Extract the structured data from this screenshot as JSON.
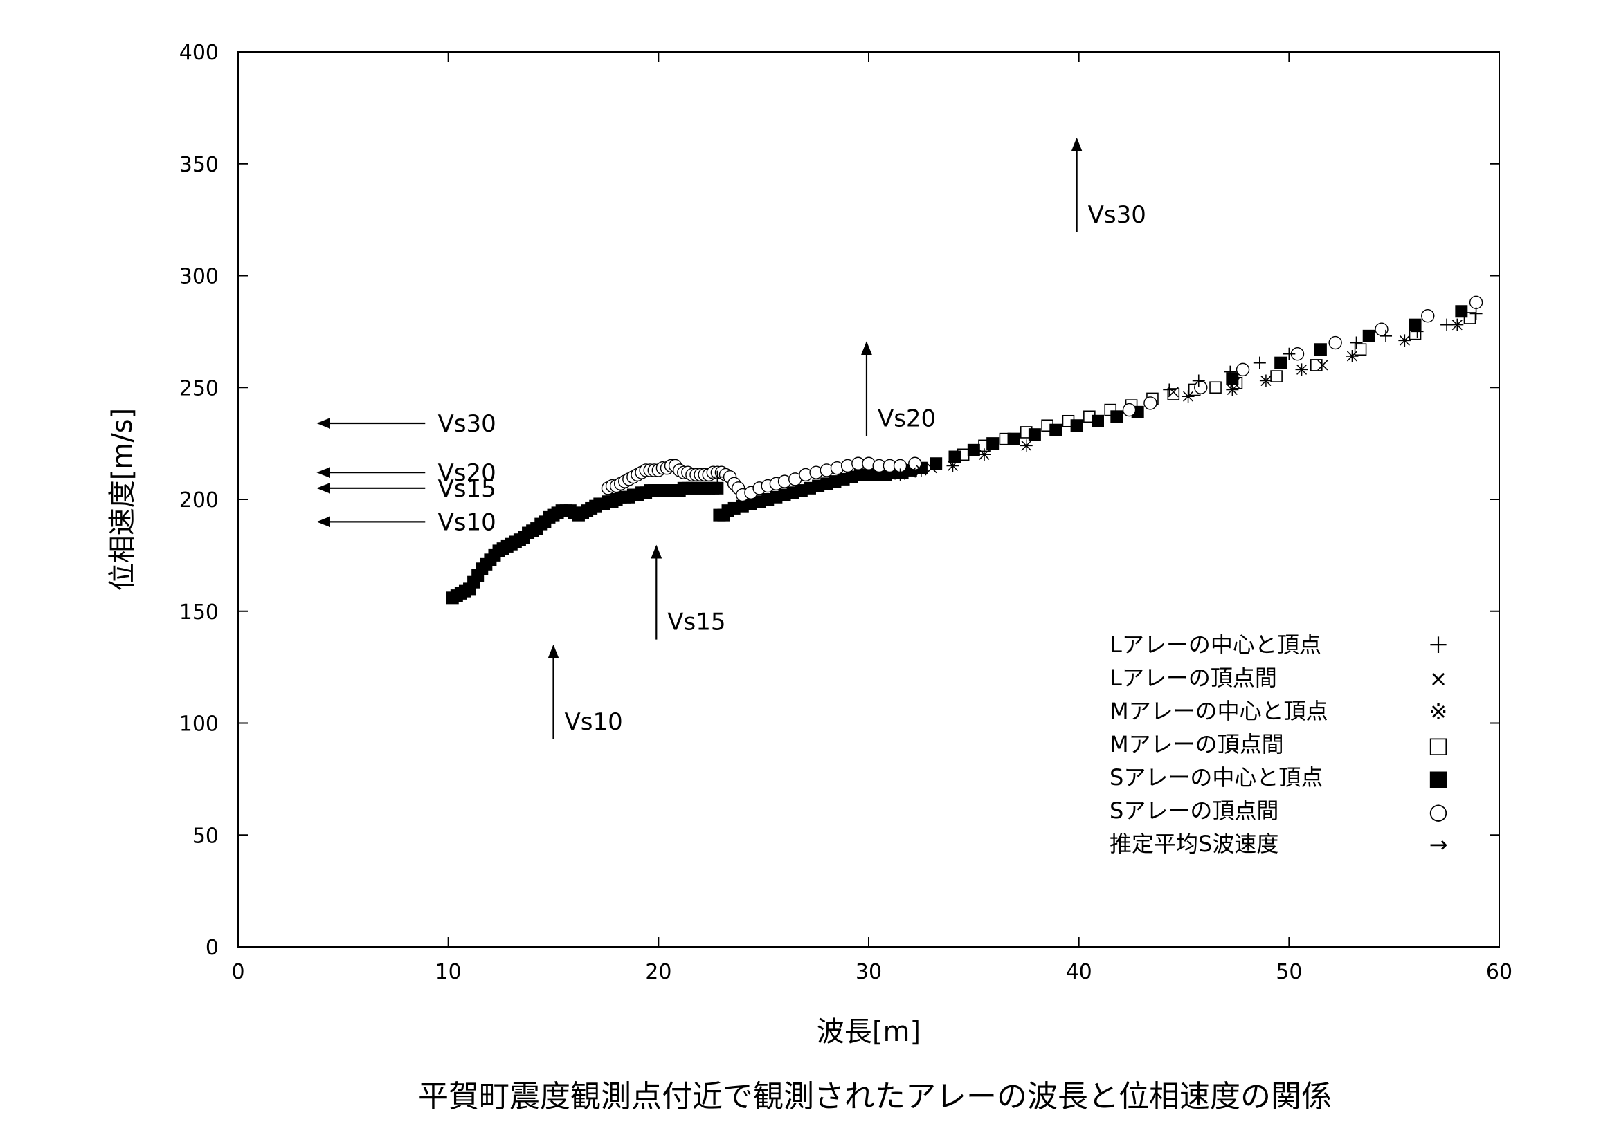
{
  "chart_data": {
    "type": "scatter",
    "title": "",
    "xlabel": "波長[m]",
    "ylabel": "位相速度[m/s]",
    "xlim": [
      0,
      60
    ],
    "ylim": [
      0,
      400
    ],
    "xticks": [
      0,
      10,
      20,
      30,
      40,
      50,
      60
    ],
    "yticks": [
      0,
      50,
      100,
      150,
      200,
      250,
      300,
      350,
      400
    ],
    "grid": false,
    "legend_position": "bottom-right",
    "series": [
      {
        "name": "Lアレーの中心と頂点",
        "marker": "plus",
        "x": [
          22.8,
          44.3,
          45.7,
          47.2,
          48.6,
          50.0,
          53.2,
          54.6,
          56.1,
          57.5,
          58.9
        ],
        "y": [
          210,
          249,
          253,
          257,
          261,
          265,
          270,
          273,
          275,
          278,
          283
        ]
      },
      {
        "name": "Lアレーの頂点間",
        "marker": "x",
        "x": [
          31.0,
          32.0,
          33.0,
          44.5,
          47.4,
          51.6
        ],
        "y": [
          211,
          212,
          214,
          248,
          252,
          260
        ]
      },
      {
        "name": "Mアレーの中心と頂点",
        "marker": "asterisk",
        "x": [
          31.5,
          32.5,
          34.0,
          35.5,
          37.5,
          45.2,
          47.3,
          48.9,
          50.6,
          53.0,
          55.5,
          58.0
        ],
        "y": [
          211,
          213,
          215,
          220,
          224,
          246,
          249,
          253,
          258,
          264,
          271,
          278
        ]
      },
      {
        "name": "Mアレーの頂点間",
        "marker": "square",
        "x": [
          34.5,
          35.5,
          36.5,
          37.5,
          38.5,
          39.5,
          40.5,
          41.5,
          42.5,
          43.5,
          44.5,
          45.5,
          46.5,
          47.5,
          49.4,
          51.3,
          53.4,
          56.0,
          58.6
        ],
        "y": [
          220,
          224,
          227,
          230,
          233,
          235,
          237,
          240,
          242,
          245,
          247,
          249,
          250,
          252,
          255,
          260,
          267,
          274,
          281
        ]
      },
      {
        "name": "Sアレーの中心と頂点",
        "marker": "filled-square",
        "x": [
          10.2,
          10.4,
          10.6,
          10.8,
          11.0,
          11.2,
          11.4,
          11.6,
          11.8,
          12.0,
          12.2,
          12.4,
          12.6,
          12.8,
          13.0,
          13.2,
          13.4,
          13.6,
          13.8,
          14.0,
          14.2,
          14.4,
          14.6,
          14.8,
          15.0,
          15.2,
          15.4,
          15.6,
          15.8,
          16.0,
          16.2,
          16.4,
          16.6,
          16.8,
          17.0,
          17.2,
          17.4,
          17.6,
          17.8,
          18.0,
          18.2,
          18.4,
          18.6,
          18.8,
          19.0,
          19.2,
          19.4,
          19.6,
          19.8,
          20.0,
          20.2,
          20.4,
          20.6,
          20.8,
          21.0,
          21.2,
          21.4,
          21.6,
          21.8,
          22.0,
          22.2,
          22.4,
          22.6,
          22.8,
          22.9,
          23.1,
          23.3,
          23.6,
          24.0,
          24.4,
          24.8,
          25.2,
          25.6,
          26.0,
          26.4,
          26.8,
          27.2,
          27.6,
          28.0,
          28.4,
          28.8,
          29.2,
          29.6,
          30.0,
          30.4,
          30.8,
          31.2,
          31.6,
          32.0,
          32.5,
          33.2,
          34.1,
          35.0,
          35.9,
          36.9,
          37.9,
          38.9,
          39.9,
          40.9,
          41.8,
          42.8,
          47.3,
          49.6,
          51.5,
          53.8,
          56.0,
          58.2
        ],
        "y": [
          156,
          157,
          158,
          159,
          160,
          163,
          166,
          169,
          171,
          173,
          175,
          177,
          178,
          179,
          180,
          181,
          182,
          183,
          185,
          186,
          187,
          189,
          190,
          192,
          193,
          194,
          195,
          195,
          195,
          194,
          193,
          194,
          195,
          196,
          197,
          198,
          198,
          199,
          199,
          200,
          201,
          201,
          201,
          202,
          202,
          203,
          203,
          204,
          204,
          204,
          204,
          204,
          204,
          204,
          204,
          205,
          205,
          205,
          205,
          205,
          205,
          205,
          205,
          205,
          193,
          193,
          195,
          196,
          197,
          198,
          199,
          200,
          201,
          202,
          203,
          204,
          205,
          206,
          207,
          208,
          209,
          210,
          211,
          211,
          211,
          211,
          212,
          212,
          213,
          214,
          216,
          219,
          222,
          225,
          227,
          229,
          231,
          233,
          235,
          237,
          239,
          254,
          261,
          267,
          273,
          278,
          284
        ]
      },
      {
        "name": "Sアレーの頂点間",
        "marker": "circle",
        "x": [
          17.6,
          17.8,
          18.0,
          18.2,
          18.4,
          18.6,
          18.8,
          19.0,
          19.2,
          19.4,
          19.6,
          19.8,
          20.0,
          20.2,
          20.4,
          20.6,
          20.8,
          21.0,
          21.2,
          21.4,
          21.6,
          21.8,
          22.0,
          22.2,
          22.4,
          22.6,
          22.8,
          23.0,
          23.2,
          23.4,
          23.6,
          23.8,
          24.0,
          24.4,
          24.8,
          25.2,
          25.6,
          26.0,
          26.5,
          27.0,
          27.5,
          28.0,
          28.5,
          29.0,
          29.5,
          30.0,
          30.5,
          31.0,
          31.5,
          32.2,
          42.4,
          43.4,
          45.8,
          47.8,
          50.4,
          52.2,
          54.4,
          56.6,
          58.9
        ],
        "y": [
          205,
          206,
          206,
          207,
          208,
          209,
          210,
          211,
          212,
          213,
          213,
          213,
          213,
          214,
          214,
          215,
          215,
          213,
          212,
          212,
          211,
          211,
          211,
          211,
          211,
          212,
          212,
          212,
          211,
          210,
          207,
          205,
          202,
          203,
          205,
          206,
          207,
          208,
          209,
          211,
          212,
          213,
          214,
          215,
          216,
          216,
          215,
          215,
          215,
          216,
          240,
          243,
          250,
          258,
          265,
          270,
          276,
          282,
          288
        ]
      }
    ],
    "annotations": [
      {
        "type": "vertical-arrow",
        "label": "Vs10",
        "x": 15.0
      },
      {
        "type": "vertical-arrow",
        "label": "Vs15",
        "x": 19.9
      },
      {
        "type": "vertical-arrow",
        "label": "Vs20",
        "x": 29.9
      },
      {
        "type": "vertical-arrow",
        "label": "Vs30",
        "x": 39.9
      },
      {
        "type": "horizontal-arrow",
        "label": "Vs30",
        "y": 234
      },
      {
        "type": "horizontal-arrow",
        "label": "Vs20",
        "y": 212
      },
      {
        "type": "horizontal-arrow",
        "label": "Vs15",
        "y": 205
      },
      {
        "type": "horizontal-arrow",
        "label": "Vs10",
        "y": 190
      }
    ],
    "legend": [
      {
        "label": "Lアレーの中心と頂点",
        "symbol": "＋"
      },
      {
        "label": "Lアレーの頂点間",
        "symbol": "×"
      },
      {
        "label": "Mアレーの中心と頂点",
        "symbol": "※"
      },
      {
        "label": "Mアレーの頂点間",
        "symbol": "□"
      },
      {
        "label": "Sアレーの中心と頂点",
        "symbol": "■"
      },
      {
        "label": "Sアレーの頂点間",
        "symbol": "○"
      },
      {
        "label": "推定平均S波速度",
        "symbol": "→"
      }
    ]
  },
  "caption": "平賀町震度観測点付近で観測されたアレーの波長と位相速度の関係"
}
